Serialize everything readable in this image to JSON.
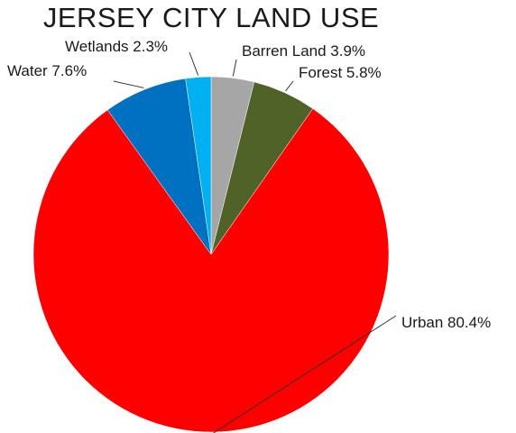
{
  "chart_data": {
    "type": "pie",
    "title": "JERSEY CITY LAND USE",
    "legend": "none",
    "slices": [
      {
        "name": "Barren Land",
        "value": 3.9,
        "label": "Barren Land 3.9%",
        "color": "#a6a6a6"
      },
      {
        "name": "Forest",
        "value": 5.8,
        "label": "Forest 5.8%",
        "color": "#4f6228"
      },
      {
        "name": "Urban",
        "value": 80.4,
        "label": "Urban 80.4%",
        "color": "#ff0000"
      },
      {
        "name": "Water",
        "value": 7.6,
        "label": "Water 7.6%",
        "color": "#0070c0"
      },
      {
        "name": "Wetlands",
        "value": 2.3,
        "label": "Wetlands 2.3%",
        "color": "#00b0f0"
      }
    ]
  }
}
